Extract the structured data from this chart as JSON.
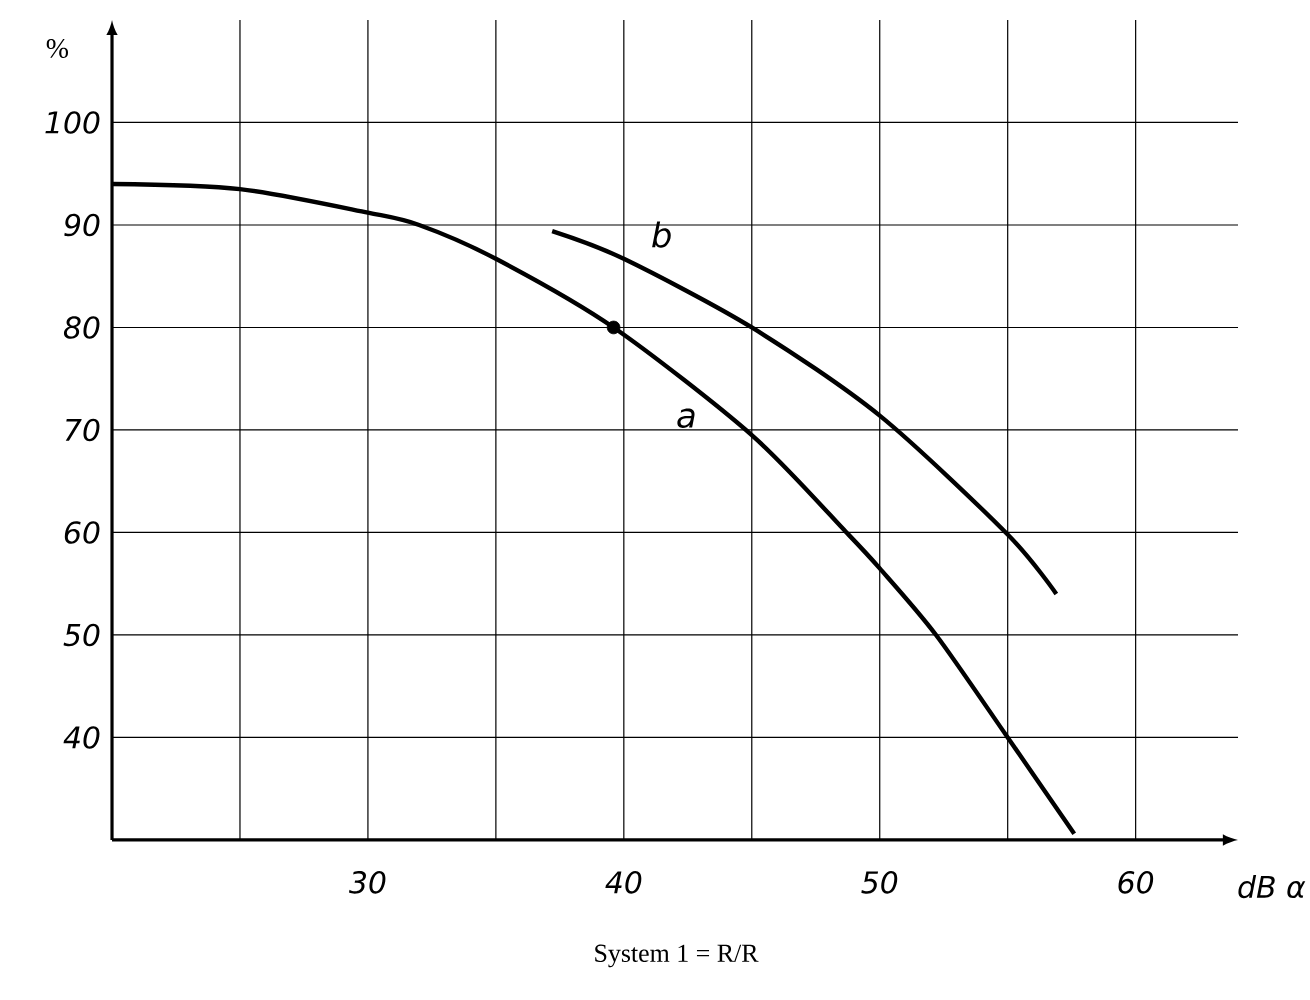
{
  "chart_data": {
    "type": "line",
    "xlabel": "dB α",
    "ylabel": "%",
    "annotations": [
      "System 1 = R/R"
    ],
    "x": [
      20,
      25,
      30,
      32,
      35,
      39.6,
      45,
      48.7,
      50,
      52.2,
      55,
      57.6
    ],
    "series": [
      {
        "name": "a",
        "color": "#000000",
        "values": [
          94,
          93.5,
          91.2,
          90,
          86.7,
          80,
          69.5,
          60,
          56.5,
          50,
          40,
          30.6
        ]
      },
      {
        "name": "b",
        "color": "#000000",
        "x": [
          37.2,
          40,
          45,
          50,
          55,
          56.9
        ],
        "values": [
          89.4,
          86.7,
          80,
          71.4,
          59.8,
          54
        ]
      },
      {
        "type": "scatter",
        "color": "#000000",
        "marker": "circle",
        "x": [
          39.6
        ],
        "values": [
          80
        ]
      }
    ],
    "xlim": [
      20,
      64
    ],
    "ylim": [
      30,
      110
    ],
    "xticks": [
      {
        "value": 25,
        "label": null
      },
      30,
      {
        "value": 35,
        "label": null
      },
      40,
      {
        "value": 45,
        "label": null
      },
      50,
      {
        "value": 55,
        "label": null
      },
      60
    ],
    "yticks": [
      40,
      50,
      60,
      70,
      80,
      90,
      100
    ],
    "grid": true,
    "line_style": "solid"
  }
}
